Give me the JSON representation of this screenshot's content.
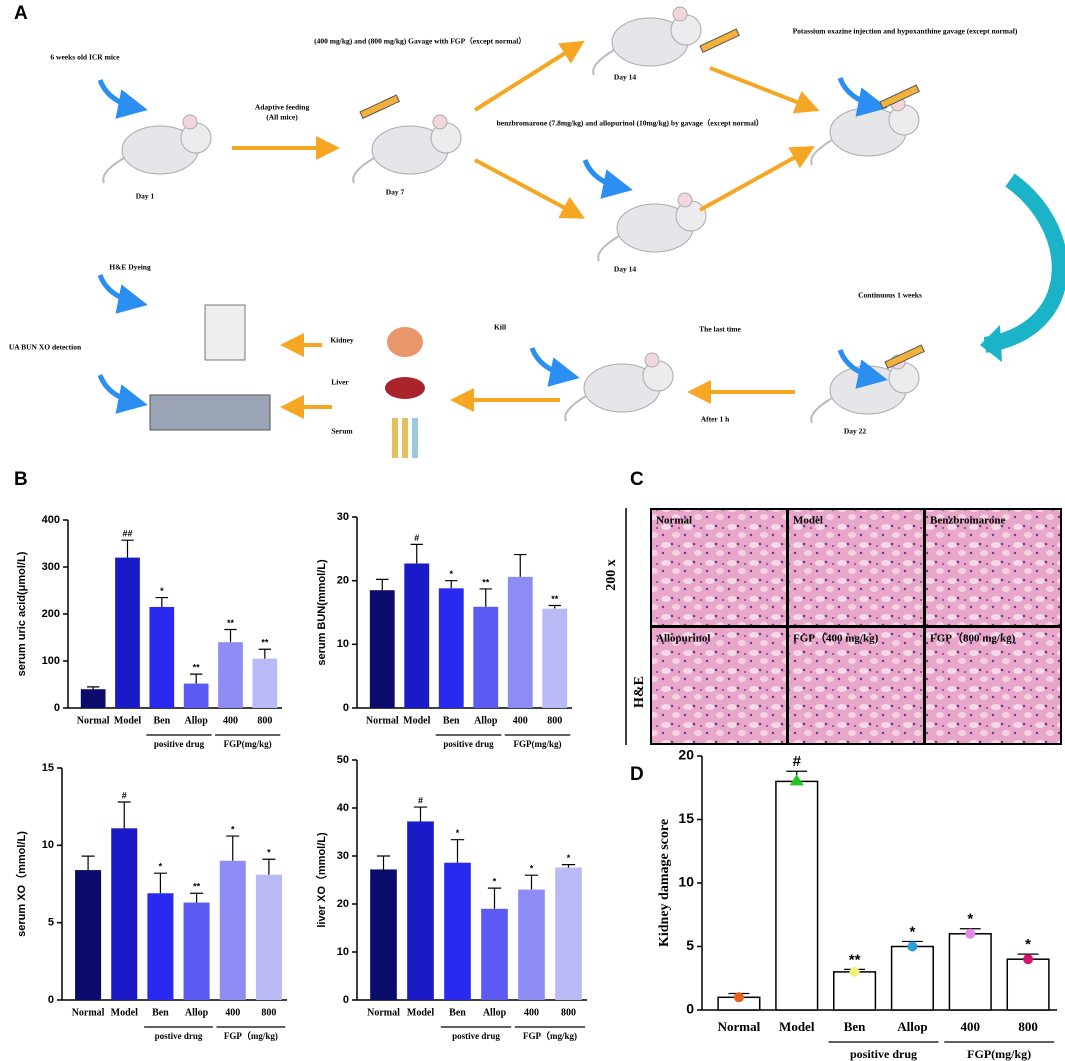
{
  "panel_labels": [
    "A",
    "B",
    "C",
    "D"
  ],
  "panel_a": {
    "texts": [
      "6 weeks old ICR mice",
      "Day 1",
      "Adaptive feeding",
      "(All mice)",
      "(400 mg/kg) and (800 mg/kg) Gavage with FGP（except normal）",
      "Day 14",
      "Potassium oxazine injection and hypoxanthine gavage (except normal)",
      "Day 7",
      "benzbromarone (7.8mg/kg) and allopurinol (10mg/kg) by gavage（except normal）",
      "Day 14",
      "H&E Dyeing",
      "Kill",
      "The last time",
      "Continuous 1 weeks",
      "UA BUN XO detection",
      "Kidney",
      "Liver",
      "Serum",
      "After 1 h",
      "Day 22"
    ]
  },
  "panel_c": {
    "magnification": "200 x",
    "stain": "H&E",
    "images": [
      "Normal",
      "Model",
      "Benzbromarone",
      "Allopurinol",
      "FGP（400 mg/kg)",
      "FGP（800 mg/kg)"
    ]
  },
  "chart_data": [
    {
      "type": "bar",
      "y_label": "serum uric acid(μmol/L)",
      "categories": [
        "Normal",
        "Model",
        "Ben",
        "Allop",
        "400",
        "800"
      ],
      "values": [
        40,
        320,
        215,
        52,
        140,
        105
      ],
      "errors": [
        5,
        37,
        20,
        20,
        27,
        20
      ],
      "annotations": [
        null,
        "##",
        "*",
        "**",
        "**",
        "**"
      ],
      "colors": [
        "#0b0b6b",
        "#1a1ac6",
        "#2929ef",
        "#5b5bf4",
        "#8c8cf3",
        "#b9b9f6"
      ],
      "groups": [
        "positive drug",
        "FGP(mg/kg)"
      ],
      "ylim": [
        0,
        400
      ],
      "yticks": [
        0,
        100,
        200,
        300,
        400
      ]
    },
    {
      "type": "bar",
      "y_label": "serum BUN(mmol/L)",
      "categories": [
        "Normal",
        "Model",
        "Ben",
        "Allop",
        "400",
        "800"
      ],
      "values": [
        18.5,
        22.7,
        18.8,
        15.9,
        20.6,
        15.6
      ],
      "errors": [
        1.7,
        3,
        1.2,
        2.8,
        3.5,
        0.5
      ],
      "annotations": [
        null,
        "#",
        "*",
        "**",
        null,
        "**"
      ],
      "colors": [
        "#0b0b6b",
        "#1a1ac6",
        "#2929ef",
        "#5b5bf4",
        "#8c8cf3",
        "#b9b9f6"
      ],
      "groups": [
        "positive drug",
        "FGP(mg/kg)"
      ],
      "ylim": [
        0,
        30
      ],
      "yticks": [
        0,
        10,
        20,
        30
      ]
    },
    {
      "type": "bar",
      "y_label": "serum XO（mmol/L)",
      "categories": [
        "Normal",
        "Model",
        "Ben",
        "Allop",
        "400",
        "800"
      ],
      "values": [
        8.4,
        11.1,
        6.9,
        6.3,
        9.0,
        8.1
      ],
      "errors": [
        0.9,
        1.7,
        1.3,
        0.6,
        1.6,
        1.0
      ],
      "annotations": [
        null,
        "#",
        "*",
        "**",
        "*",
        "*"
      ],
      "colors": [
        "#0b0b6b",
        "#1a1ac6",
        "#2929ef",
        "#5b5bf4",
        "#8c8cf3",
        "#b9b9f6"
      ],
      "groups": [
        "postive drug",
        "FGP（mg/kg)"
      ],
      "ylim": [
        0,
        15
      ],
      "yticks": [
        0,
        5,
        10,
        15
      ]
    },
    {
      "type": "bar",
      "y_label": "liver XO（mmol/L)",
      "categories": [
        "Normal",
        "Model",
        "Ben",
        "Allop",
        "400",
        "800"
      ],
      "values": [
        27.2,
        37.2,
        28.6,
        19,
        23,
        27.6
      ],
      "errors": [
        2.8,
        3,
        4.8,
        4.3,
        3,
        0.6
      ],
      "annotations": [
        null,
        "#",
        "*",
        "*",
        "*",
        "*"
      ],
      "colors": [
        "#0b0b6b",
        "#1a1ac6",
        "#2929ef",
        "#5b5bf4",
        "#8c8cf3",
        "#b9b9f6"
      ],
      "groups": [
        "postive drug",
        "FGP（mg/kg)"
      ],
      "ylim": [
        0,
        50
      ],
      "yticks": [
        0,
        10,
        20,
        30,
        40,
        50
      ]
    },
    {
      "type": "bar",
      "y_label": "Kidney damage score",
      "categories": [
        "Normal",
        "Model",
        "Ben",
        "Allop",
        "400",
        "800"
      ],
      "values": [
        1,
        18,
        3,
        5,
        6,
        4
      ],
      "errors": [
        0.3,
        0.8,
        0.2,
        0.4,
        0.4,
        0.4
      ],
      "annotations": [
        null,
        "#",
        "**",
        "*",
        "*",
        "*"
      ],
      "color": "#ffffff",
      "point_colors": [
        "#e8601c",
        "#1fc41f",
        "#f2f27a",
        "#2a9fd8",
        "#e08ae8",
        "#d6146e"
      ],
      "groups": [
        "positive drug",
        "FGP(mg/kg)"
      ],
      "ylim": [
        0,
        20
      ],
      "yticks": [
        0,
        5,
        10,
        15,
        20
      ]
    }
  ]
}
